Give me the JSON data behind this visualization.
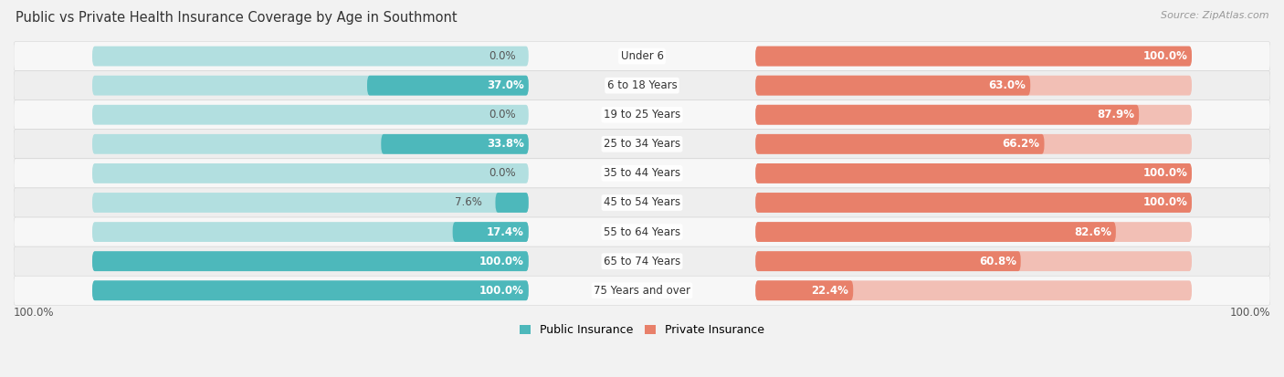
{
  "title": "Public vs Private Health Insurance Coverage by Age in Southmont",
  "source": "Source: ZipAtlas.com",
  "categories": [
    "Under 6",
    "6 to 18 Years",
    "19 to 25 Years",
    "25 to 34 Years",
    "35 to 44 Years",
    "45 to 54 Years",
    "55 to 64 Years",
    "65 to 74 Years",
    "75 Years and over"
  ],
  "public_values": [
    0.0,
    37.0,
    0.0,
    33.8,
    0.0,
    7.6,
    17.4,
    100.0,
    100.0
  ],
  "private_values": [
    100.0,
    63.0,
    87.9,
    66.2,
    100.0,
    100.0,
    82.6,
    60.8,
    22.4
  ],
  "public_color": "#4db8bb",
  "public_color_light": "#b2dfe0",
  "private_color": "#e8806a",
  "private_color_light": "#f2bfb5",
  "bg_color": "#f2f2f2",
  "row_bg_colors": [
    "#f7f7f7",
    "#eeeeee"
  ],
  "label_fontsize": 8.5,
  "title_fontsize": 10.5,
  "legend_fontsize": 9,
  "source_fontsize": 8,
  "value_label_color_dark": "#555555",
  "value_label_color_light": "white"
}
